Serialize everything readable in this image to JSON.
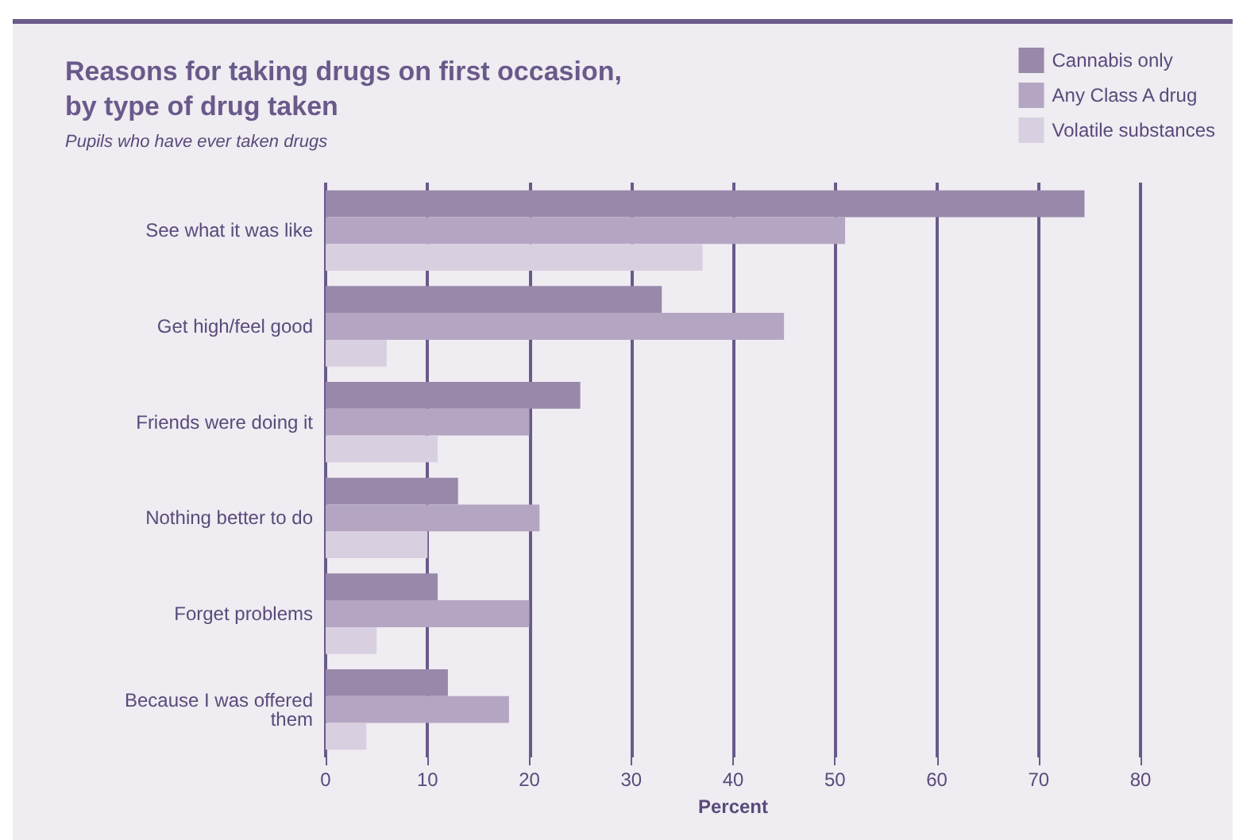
{
  "chart_data": {
    "type": "bar",
    "orientation": "horizontal",
    "title": "Reasons for taking drugs on first occasion,\nby type of drug taken",
    "subtitle": "Pupils who have ever taken drugs",
    "xlabel": "Percent",
    "categories": [
      "See what it was like",
      "Get high/feel good",
      "Friends were doing it",
      "Nothing better to do",
      "Forget problems",
      "Because I was offered\nthem"
    ],
    "series": [
      {
        "name": "Cannabis only",
        "color": "#9888aa",
        "values": [
          74.5,
          33,
          25,
          13,
          11,
          12
        ]
      },
      {
        "name": "Any Class A drug",
        "color": "#b4a6c3",
        "values": [
          51,
          45,
          20,
          21,
          20,
          18
        ]
      },
      {
        "name": "Volatile substances",
        "color": "#d8d0e0",
        "values": [
          37,
          6,
          11,
          10,
          5,
          4
        ]
      }
    ],
    "xlim": [
      0,
      80
    ],
    "xticks": [
      0,
      10,
      20,
      30,
      40,
      50,
      60,
      70,
      80
    ],
    "grid": "x",
    "legend": "top right"
  }
}
